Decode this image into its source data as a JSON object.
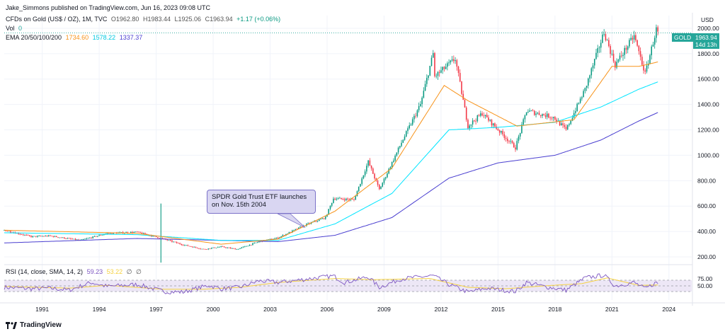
{
  "header": {
    "publisher": "Jake_Simmons published on TradingView.com, Jun 16, 2023 09:08 UTC",
    "symbol": "CFDs on Gold (US$ / OZ), 1M, TVC",
    "open": "O1962.80",
    "high": "H1983.44",
    "low": "L1925.06",
    "close": "C1963.94",
    "change": "+1.17 (+0.06%)",
    "vol_label": "Vol",
    "vol_value": "0",
    "ema_label": "EMA 20/50/100/200",
    "ema_values": [
      "1734.60",
      "1578.22",
      "1337.37"
    ],
    "rsi_label": "RSI (14, close, SMA, 14, 2)",
    "rsi_values": [
      "59.23",
      "53.22"
    ],
    "rsi_extra": [
      "∅",
      "∅"
    ]
  },
  "annotation": {
    "text": "SPDR Gold Trust ETF launches on Nov. 15th 2004"
  },
  "price_axis": {
    "currency": "USD",
    "ticks": [
      "2000.00",
      "1800.00",
      "1600.00",
      "1400.00",
      "1200.00",
      "1000.00",
      "800.00",
      "600.00",
      "400.00",
      "200.00"
    ]
  },
  "rsi_axis": {
    "ticks": [
      "75.00",
      "50.00"
    ]
  },
  "time_axis": {
    "ticks": [
      "1991",
      "1994",
      "1997",
      "2000",
      "2003",
      "2006",
      "2009",
      "2012",
      "2015",
      "2018",
      "2021",
      "2024"
    ]
  },
  "price_label": {
    "symbol": "GOLD",
    "price": "1963.94",
    "countdown": "14d 13h"
  },
  "footer": {
    "brand": "TradingView"
  },
  "colors": {
    "up": "#089981",
    "down": "#f23645",
    "ema20": "#f7931a",
    "ema50": "#00e5ff",
    "ema100": "#4a3fd0",
    "rsi": "#7e57c2",
    "rsi_ma": "#f5d142",
    "rsi_band": "#ede7f6"
  },
  "chart_data": {
    "type": "candlestick",
    "interval": "1M",
    "x_range": [
      "1989",
      "2024"
    ],
    "y_range": [
      150,
      2100
    ],
    "price_anchors": [
      [
        "1989-01",
        410
      ],
      [
        "1990-06",
        360
      ],
      [
        "1991-06",
        365
      ],
      [
        "1993-01",
        330
      ],
      [
        "1994-06",
        385
      ],
      [
        "1996-01",
        395
      ],
      [
        "1997-06",
        340
      ],
      [
        "1998-06",
        295
      ],
      [
        "1999-07",
        260
      ],
      [
        "2000-06",
        280
      ],
      [
        "2001-04",
        260
      ],
      [
        "2002-06",
        320
      ],
      [
        "2003-06",
        350
      ],
      [
        "2004-11",
        450
      ],
      [
        "2005-12",
        510
      ],
      [
        "2006-05",
        660
      ],
      [
        "2007-06",
        650
      ],
      [
        "2008-03",
        950
      ],
      [
        "2008-10",
        730
      ],
      [
        "2009-12",
        1100
      ],
      [
        "2010-12",
        1400
      ],
      [
        "2011-08",
        1800
      ],
      [
        "2011-09",
        1620
      ],
      [
        "2012-10",
        1760
      ],
      [
        "2013-06",
        1230
      ],
      [
        "2014-03",
        1330
      ],
      [
        "2015-12",
        1060
      ],
      [
        "2016-07",
        1350
      ],
      [
        "2017-12",
        1300
      ],
      [
        "2018-08",
        1200
      ],
      [
        "2019-08",
        1520
      ],
      [
        "2020-08",
        1970
      ],
      [
        "2021-03",
        1710
      ],
      [
        "2022-03",
        1940
      ],
      [
        "2022-10",
        1640
      ],
      [
        "2023-05",
        1990
      ],
      [
        "2023-06",
        1964
      ]
    ],
    "ema20_anchors": [
      [
        "1989-01",
        410
      ],
      [
        "1996-01",
        385
      ],
      [
        "2000-06",
        300
      ],
      [
        "2003-06",
        340
      ],
      [
        "2006-06",
        560
      ],
      [
        "2009-06",
        900
      ],
      [
        "2012-03",
        1550
      ],
      [
        "2013-06",
        1430
      ],
      [
        "2016-01",
        1230
      ],
      [
        "2019-01",
        1280
      ],
      [
        "2021-01",
        1700
      ],
      [
        "2022-06",
        1700
      ],
      [
        "2023-06",
        1735
      ]
    ],
    "ema50_anchors": [
      [
        "1989-01",
        390
      ],
      [
        "1996-01",
        375
      ],
      [
        "2000-06",
        330
      ],
      [
        "2003-06",
        330
      ],
      [
        "2006-06",
        460
      ],
      [
        "2009-06",
        700
      ],
      [
        "2012-06",
        1200
      ],
      [
        "2015-01",
        1220
      ],
      [
        "2018-01",
        1260
      ],
      [
        "2020-06",
        1380
      ],
      [
        "2022-06",
        1520
      ],
      [
        "2023-06",
        1578
      ]
    ],
    "ema100_anchors": [
      [
        "1989-01",
        310
      ],
      [
        "1996-01",
        345
      ],
      [
        "2000-06",
        330
      ],
      [
        "2003-06",
        320
      ],
      [
        "2006-06",
        370
      ],
      [
        "2009-06",
        510
      ],
      [
        "2012-06",
        820
      ],
      [
        "2015-01",
        940
      ],
      [
        "2018-01",
        1000
      ],
      [
        "2020-06",
        1120
      ],
      [
        "2022-06",
        1270
      ],
      [
        "2023-06",
        1337
      ]
    ],
    "rsi_anchors": [
      [
        "1989-01",
        45
      ],
      [
        "1990-06",
        40
      ],
      [
        "1991-06",
        42
      ],
      [
        "1992-06",
        35
      ],
      [
        "1993-08",
        62
      ],
      [
        "1994-06",
        48
      ],
      [
        "1996-01",
        55
      ],
      [
        "1997-06",
        30
      ],
      [
        "1998-06",
        28
      ],
      [
        "1999-10",
        52
      ],
      [
        "2000-06",
        40
      ],
      [
        "2001-06",
        45
      ],
      [
        "2002-06",
        68
      ],
      [
        "2003-06",
        62
      ],
      [
        "2004-06",
        70
      ],
      [
        "2005-06",
        78
      ],
      [
        "2006-05",
        85
      ],
      [
        "2006-12",
        62
      ],
      [
        "2008-03",
        82
      ],
      [
        "2008-10",
        45
      ],
      [
        "2009-12",
        75
      ],
      [
        "2011-08",
        86
      ],
      [
        "2012-06",
        55
      ],
      [
        "2013-06",
        28
      ],
      [
        "2014-06",
        42
      ],
      [
        "2015-12",
        30
      ],
      [
        "2016-07",
        62
      ],
      [
        "2017-06",
        48
      ],
      [
        "2018-08",
        35
      ],
      [
        "2019-08",
        78
      ],
      [
        "2020-08",
        88
      ],
      [
        "2021-03",
        50
      ],
      [
        "2022-03",
        62
      ],
      [
        "2022-10",
        40
      ],
      [
        "2023-05",
        62
      ],
      [
        "2023-06",
        59
      ]
    ],
    "rsi_ma_anchors": [
      [
        "1989-01",
        48
      ],
      [
        "1992-06",
        42
      ],
      [
        "1994-06",
        52
      ],
      [
        "1997-06",
        38
      ],
      [
        "1999-06",
        38
      ],
      [
        "2001-06",
        45
      ],
      [
        "2003-06",
        62
      ],
      [
        "2006-06",
        76
      ],
      [
        "2008-06",
        72
      ],
      [
        "2011-06",
        76
      ],
      [
        "2013-06",
        45
      ],
      [
        "2015-06",
        40
      ],
      [
        "2017-06",
        50
      ],
      [
        "2019-06",
        58
      ],
      [
        "2020-10",
        78
      ],
      [
        "2022-06",
        52
      ],
      [
        "2023-06",
        53
      ]
    ],
    "rsi_range": [
      0,
      100
    ],
    "rsi_bands": [
      30,
      70
    ],
    "grid": true
  }
}
